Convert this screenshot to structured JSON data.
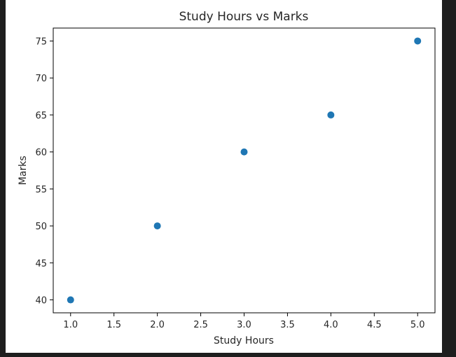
{
  "window": {
    "background": "#1e1e1e",
    "figure_background": "#ffffff"
  },
  "chart_data": {
    "type": "scatter",
    "title": "Study Hours vs Marks",
    "xlabel": "Study Hours",
    "ylabel": "Marks",
    "x": [
      1,
      2,
      3,
      4,
      5
    ],
    "y": [
      40,
      50,
      60,
      65,
      75
    ],
    "xlim": [
      0.8,
      5.2
    ],
    "ylim": [
      38.25,
      76.75
    ],
    "xticks": [
      1.0,
      1.5,
      2.0,
      2.5,
      3.0,
      3.5,
      4.0,
      4.5,
      5.0
    ],
    "xtick_labels": [
      "1.0",
      "1.5",
      "2.0",
      "2.5",
      "3.0",
      "3.5",
      "4.0",
      "4.5",
      "5.0"
    ],
    "yticks": [
      40,
      45,
      50,
      55,
      60,
      65,
      70,
      75
    ],
    "ytick_labels": [
      "40",
      "45",
      "50",
      "55",
      "60",
      "65",
      "70",
      "75"
    ],
    "marker_color": "#1f77b4",
    "grid": false,
    "legend": "none"
  }
}
